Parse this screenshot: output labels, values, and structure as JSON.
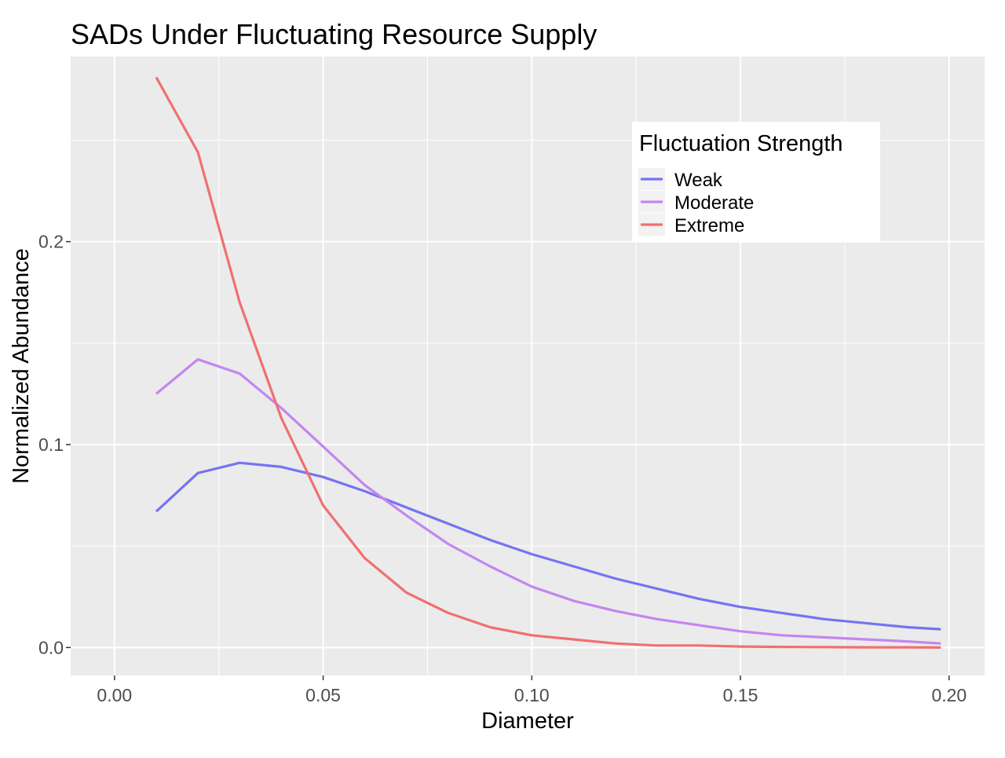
{
  "chart_data": {
    "type": "line",
    "title": "SADs Under Fluctuating Resource Supply",
    "xlabel": "Diameter",
    "ylabel": "Normalized Abundance",
    "xlim": [
      -0.0105,
      0.2085
    ],
    "ylim": [
      -0.0138,
      0.2912
    ],
    "x_ticks": [
      0.0,
      0.05,
      0.1,
      0.15,
      0.2
    ],
    "x_tick_labels": [
      "0.00",
      "0.05",
      "0.10",
      "0.15",
      "0.20"
    ],
    "y_ticks": [
      0.0,
      0.1,
      0.2
    ],
    "y_tick_labels": [
      "0.0",
      "0.1",
      "0.2"
    ],
    "grid": true,
    "legend": {
      "title": "Fluctuation Strength",
      "position": "top-right"
    },
    "series": [
      {
        "name": "Weak",
        "color": "#7474f2",
        "x": [
          0.01,
          0.02,
          0.03,
          0.04,
          0.05,
          0.06,
          0.07,
          0.08,
          0.09,
          0.1,
          0.11,
          0.12,
          0.13,
          0.14,
          0.15,
          0.16,
          0.17,
          0.18,
          0.19,
          0.198
        ],
        "y": [
          0.067,
          0.086,
          0.091,
          0.089,
          0.084,
          0.077,
          0.069,
          0.061,
          0.053,
          0.046,
          0.04,
          0.034,
          0.029,
          0.024,
          0.02,
          0.017,
          0.014,
          0.012,
          0.01,
          0.009
        ]
      },
      {
        "name": "Moderate",
        "color": "#c585f0",
        "x": [
          0.01,
          0.02,
          0.03,
          0.04,
          0.05,
          0.06,
          0.07,
          0.08,
          0.09,
          0.1,
          0.11,
          0.12,
          0.13,
          0.14,
          0.15,
          0.16,
          0.17,
          0.18,
          0.19,
          0.198
        ],
        "y": [
          0.125,
          0.142,
          0.135,
          0.118,
          0.099,
          0.08,
          0.065,
          0.051,
          0.04,
          0.03,
          0.023,
          0.018,
          0.014,
          0.011,
          0.008,
          0.006,
          0.005,
          0.004,
          0.003,
          0.002
        ]
      },
      {
        "name": "Extreme",
        "color": "#f07070",
        "x": [
          0.01,
          0.02,
          0.03,
          0.04,
          0.05,
          0.06,
          0.07,
          0.08,
          0.09,
          0.1,
          0.11,
          0.12,
          0.13,
          0.14,
          0.15,
          0.16,
          0.17,
          0.18,
          0.19,
          0.198
        ],
        "y": [
          0.281,
          0.244,
          0.17,
          0.113,
          0.07,
          0.044,
          0.027,
          0.017,
          0.01,
          0.006,
          0.004,
          0.002,
          0.001,
          0.001,
          0.0005,
          0.0003,
          0.0002,
          0.0001,
          0.0001,
          0.0
        ]
      }
    ]
  }
}
